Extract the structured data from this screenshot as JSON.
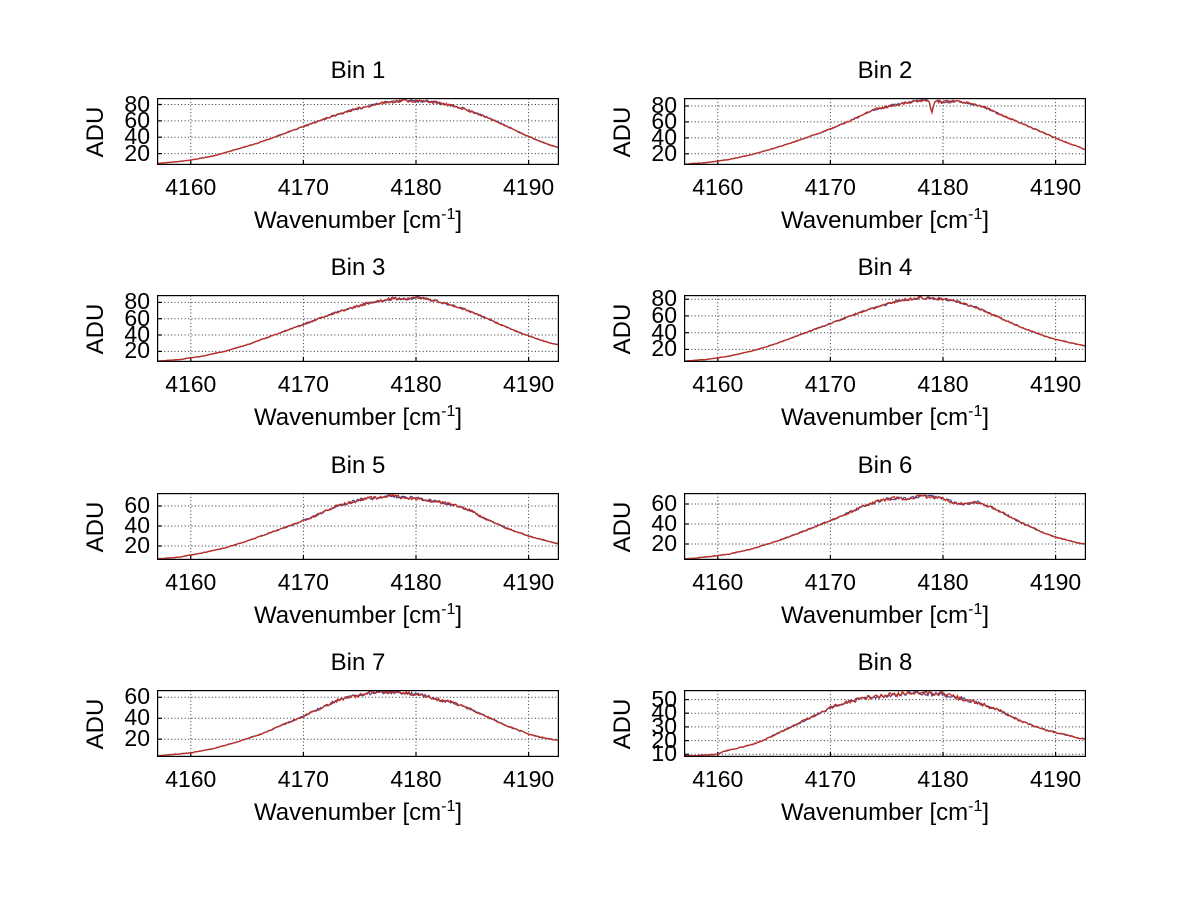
{
  "figure": {
    "background": "#ffffff",
    "ylabel": "ADU",
    "xlabel_main": "Wavenumber [cm",
    "xlabel_sup": "-1",
    "xlabel_close": "]"
  },
  "chart_data": {
    "type": "line",
    "layout": "4x2 subplot grid",
    "xlabel": "Wavenumber [cm^-1]",
    "ylabel": "ADU",
    "grid": true,
    "legend_position": "none",
    "x_ticks": [
      4160,
      4170,
      4180,
      4190
    ],
    "xlim": [
      4157,
      4192.7
    ],
    "style": {
      "line_color": "#bf2e1e",
      "under_line_color": "#44449a",
      "grid_color": "#2e2e2e",
      "axis_color": "#000000",
      "text_color": "#000000"
    },
    "panels": [
      {
        "title": "Bin 1",
        "yticks": [
          20,
          40,
          60,
          80
        ],
        "ylim": [
          6,
          88
        ],
        "noise_seed": 11,
        "points": [
          [
            4157,
            8
          ],
          [
            4158,
            9
          ],
          [
            4160,
            12
          ],
          [
            4162,
            17
          ],
          [
            4164,
            25
          ],
          [
            4166,
            33
          ],
          [
            4168,
            43
          ],
          [
            4170,
            53
          ],
          [
            4172,
            63
          ],
          [
            4174,
            72
          ],
          [
            4176,
            79
          ],
          [
            4177.5,
            83
          ],
          [
            4179,
            85
          ],
          [
            4180,
            84
          ],
          [
            4181,
            84
          ],
          [
            4182,
            82
          ],
          [
            4183,
            79
          ],
          [
            4184,
            76
          ],
          [
            4185,
            71
          ],
          [
            4186,
            66
          ],
          [
            4187,
            60
          ],
          [
            4188,
            54
          ],
          [
            4189,
            47
          ],
          [
            4190,
            41
          ],
          [
            4191,
            35
          ],
          [
            4192,
            30
          ],
          [
            4192.7,
            27
          ]
        ]
      },
      {
        "title": "Bin 2",
        "yticks": [
          20,
          40,
          60,
          80
        ],
        "ylim": [
          6,
          90
        ],
        "noise_seed": 22,
        "points": [
          [
            4157,
            7
          ],
          [
            4159,
            9
          ],
          [
            4161,
            13
          ],
          [
            4163,
            19
          ],
          [
            4165,
            27
          ],
          [
            4167,
            36
          ],
          [
            4169,
            46
          ],
          [
            4171,
            57
          ],
          [
            4172,
            63
          ],
          [
            4173,
            70
          ],
          [
            4174,
            76
          ],
          [
            4175,
            79
          ],
          [
            4176,
            82
          ],
          [
            4177,
            85
          ],
          [
            4178,
            87
          ],
          [
            4178.7,
            88
          ],
          [
            4179,
            72
          ],
          [
            4179.3,
            86
          ],
          [
            4180,
            85
          ],
          [
            4181,
            86
          ],
          [
            4182,
            84
          ],
          [
            4183,
            81
          ],
          [
            4184,
            77
          ],
          [
            4184.5,
            73
          ],
          [
            4185,
            70
          ],
          [
            4186,
            64
          ],
          [
            4187,
            58
          ],
          [
            4188,
            52
          ],
          [
            4189,
            46
          ],
          [
            4190,
            40
          ],
          [
            4191,
            34
          ],
          [
            4192,
            29
          ],
          [
            4192.7,
            25
          ]
        ]
      },
      {
        "title": "Bin 3",
        "yticks": [
          20,
          40,
          60,
          80
        ],
        "ylim": [
          7,
          89
        ],
        "noise_seed": 33,
        "points": [
          [
            4157,
            8
          ],
          [
            4159,
            10
          ],
          [
            4161,
            14
          ],
          [
            4163,
            20
          ],
          [
            4165,
            28
          ],
          [
            4167,
            38
          ],
          [
            4169,
            48
          ],
          [
            4171,
            58
          ],
          [
            4173,
            68
          ],
          [
            4175,
            76
          ],
          [
            4176,
            80
          ],
          [
            4177,
            82
          ],
          [
            4178,
            85
          ],
          [
            4179,
            84
          ],
          [
            4180,
            86
          ],
          [
            4181,
            84
          ],
          [
            4182,
            81
          ],
          [
            4183,
            77
          ],
          [
            4184,
            73
          ],
          [
            4185,
            68
          ],
          [
            4186,
            62
          ],
          [
            4187,
            56
          ],
          [
            4188,
            50
          ],
          [
            4189,
            44
          ],
          [
            4190,
            39
          ],
          [
            4191,
            34
          ],
          [
            4192,
            30
          ],
          [
            4192.7,
            28
          ]
        ]
      },
      {
        "title": "Bin 4",
        "yticks": [
          20,
          40,
          60,
          80
        ],
        "ylim": [
          5,
          85
        ],
        "noise_seed": 44,
        "points": [
          [
            4157,
            6
          ],
          [
            4159,
            8
          ],
          [
            4161,
            12
          ],
          [
            4163,
            18
          ],
          [
            4165,
            26
          ],
          [
            4167,
            36
          ],
          [
            4169,
            46
          ],
          [
            4171,
            56
          ],
          [
            4173,
            66
          ],
          [
            4175,
            74
          ],
          [
            4176,
            78
          ],
          [
            4177,
            80
          ],
          [
            4178,
            82
          ],
          [
            4179,
            81
          ],
          [
            4180,
            80
          ],
          [
            4181,
            78
          ],
          [
            4182,
            74
          ],
          [
            4183,
            70
          ],
          [
            4184,
            64
          ],
          [
            4185,
            58
          ],
          [
            4186,
            52
          ],
          [
            4187,
            46
          ],
          [
            4188,
            41
          ],
          [
            4189,
            36
          ],
          [
            4190,
            32
          ],
          [
            4191,
            29
          ],
          [
            4192,
            26
          ],
          [
            4192.7,
            24
          ]
        ]
      },
      {
        "title": "Bin 5",
        "yticks": [
          20,
          40,
          60
        ],
        "ylim": [
          6,
          73
        ],
        "noise_seed": 55,
        "points": [
          [
            4157,
            7
          ],
          [
            4159,
            9
          ],
          [
            4161,
            13
          ],
          [
            4163,
            18
          ],
          [
            4165,
            25
          ],
          [
            4167,
            33
          ],
          [
            4169,
            41
          ],
          [
            4171,
            50
          ],
          [
            4172,
            55
          ],
          [
            4173,
            60
          ],
          [
            4174,
            63
          ],
          [
            4175,
            66
          ],
          [
            4176,
            68
          ],
          [
            4177,
            69
          ],
          [
            4178,
            70
          ],
          [
            4179,
            68
          ],
          [
            4180,
            68
          ],
          [
            4181,
            66
          ],
          [
            4182,
            64
          ],
          [
            4183,
            62
          ],
          [
            4184,
            59
          ],
          [
            4185,
            55
          ],
          [
            4185.5,
            51
          ],
          [
            4186,
            48
          ],
          [
            4187,
            43
          ],
          [
            4188,
            38
          ],
          [
            4189,
            34
          ],
          [
            4190,
            30
          ],
          [
            4191,
            27
          ],
          [
            4192,
            24
          ],
          [
            4192.7,
            22
          ]
        ]
      },
      {
        "title": "Bin 6",
        "yticks": [
          20,
          40,
          60
        ],
        "ylim": [
          4,
          71
        ],
        "noise_seed": 66,
        "points": [
          [
            4157,
            5
          ],
          [
            4159,
            7
          ],
          [
            4161,
            10
          ],
          [
            4163,
            15
          ],
          [
            4165,
            22
          ],
          [
            4167,
            30
          ],
          [
            4169,
            39
          ],
          [
            4171,
            48
          ],
          [
            4172,
            53
          ],
          [
            4173,
            58
          ],
          [
            4174,
            62
          ],
          [
            4175,
            65
          ],
          [
            4176,
            66
          ],
          [
            4177,
            65
          ],
          [
            4178,
            68
          ],
          [
            4179,
            67
          ],
          [
            4180,
            66
          ],
          [
            4181,
            61
          ],
          [
            4182,
            60
          ],
          [
            4183,
            62
          ],
          [
            4184,
            58
          ],
          [
            4185,
            53
          ],
          [
            4186,
            47
          ],
          [
            4187,
            41
          ],
          [
            4188,
            36
          ],
          [
            4189,
            31
          ],
          [
            4190,
            27
          ],
          [
            4191,
            24
          ],
          [
            4192,
            21
          ],
          [
            4192.7,
            20
          ]
        ]
      },
      {
        "title": "Bin 7",
        "yticks": [
          20,
          40,
          60
        ],
        "ylim": [
          3,
          67
        ],
        "noise_seed": 77,
        "points": [
          [
            4157,
            4
          ],
          [
            4159,
            6
          ],
          [
            4160,
            7
          ],
          [
            4162,
            11
          ],
          [
            4164,
            17
          ],
          [
            4166,
            24
          ],
          [
            4168,
            33
          ],
          [
            4170,
            42
          ],
          [
            4172,
            52
          ],
          [
            4173,
            57
          ],
          [
            4174,
            60
          ],
          [
            4175,
            62
          ],
          [
            4176,
            64
          ],
          [
            4177,
            65
          ],
          [
            4178,
            65
          ],
          [
            4179,
            64
          ],
          [
            4180,
            63
          ],
          [
            4181,
            61
          ],
          [
            4182,
            58
          ],
          [
            4182.5,
            56
          ],
          [
            4183,
            56
          ],
          [
            4184,
            52
          ],
          [
            4185,
            48
          ],
          [
            4186,
            43
          ],
          [
            4187,
            38
          ],
          [
            4188,
            33
          ],
          [
            4189,
            29
          ],
          [
            4190,
            25
          ],
          [
            4191,
            22
          ],
          [
            4192,
            20
          ],
          [
            4192.7,
            19
          ]
        ]
      },
      {
        "title": "Bin 8",
        "yticks": [
          10,
          20,
          30,
          40,
          50
        ],
        "ylim": [
          8,
          57
        ],
        "noise_seed": 88,
        "points": [
          [
            4157,
            9
          ],
          [
            4158,
            9
          ],
          [
            4159,
            9.5
          ],
          [
            4160,
            10
          ],
          [
            4160.5,
            12
          ],
          [
            4161,
            13
          ],
          [
            4162,
            15
          ],
          [
            4163,
            17
          ],
          [
            4164,
            20
          ],
          [
            4165,
            24
          ],
          [
            4166,
            28
          ],
          [
            4167,
            32
          ],
          [
            4168,
            36
          ],
          [
            4169,
            40
          ],
          [
            4170,
            44
          ],
          [
            4171,
            47
          ],
          [
            4172,
            49
          ],
          [
            4173,
            51
          ],
          [
            4174,
            52
          ],
          [
            4175,
            53
          ],
          [
            4176,
            54
          ],
          [
            4177,
            55
          ],
          [
            4178,
            55
          ],
          [
            4179,
            54
          ],
          [
            4180,
            54
          ],
          [
            4181,
            52
          ],
          [
            4182,
            50
          ],
          [
            4183,
            48
          ],
          [
            4184,
            45
          ],
          [
            4185,
            42
          ],
          [
            4186,
            38
          ],
          [
            4187,
            34
          ],
          [
            4188,
            31
          ],
          [
            4189,
            28
          ],
          [
            4190,
            26
          ],
          [
            4191,
            24
          ],
          [
            4192,
            22
          ],
          [
            4192.7,
            21
          ]
        ]
      }
    ]
  }
}
